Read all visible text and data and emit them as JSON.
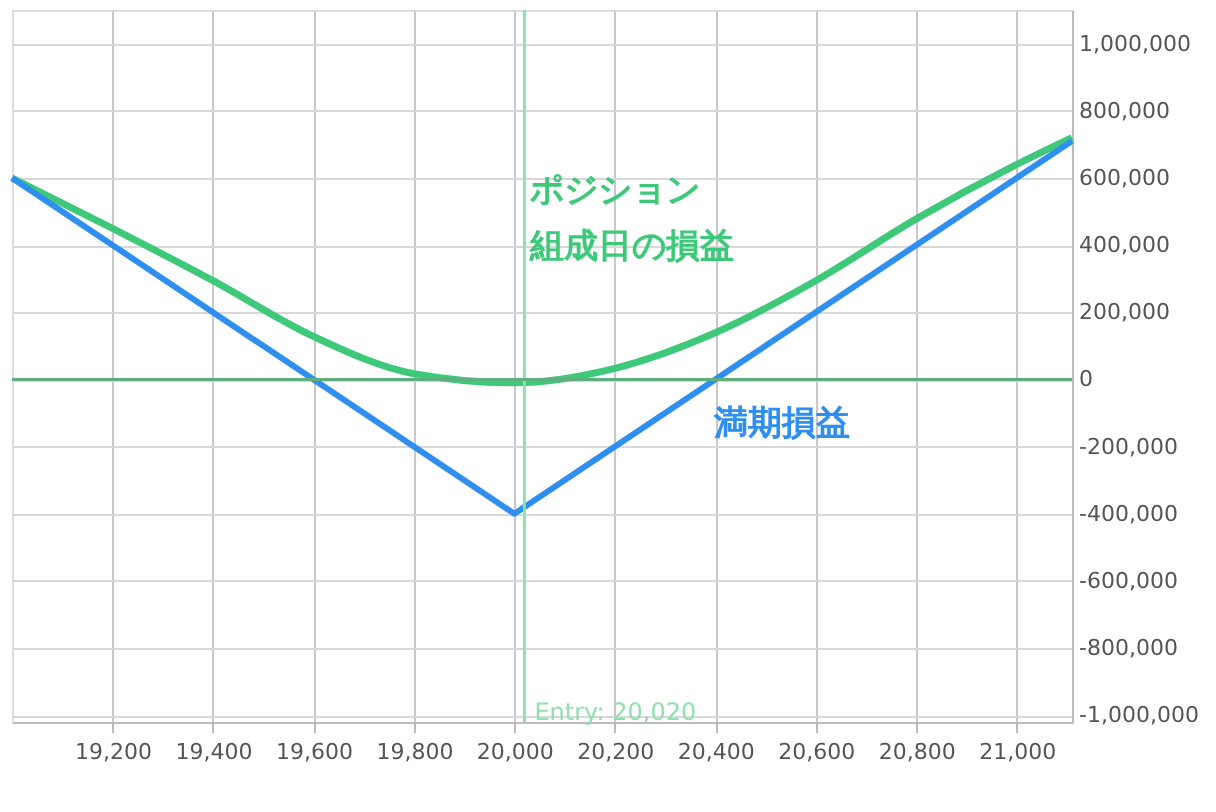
{
  "chart_data": {
    "type": "line",
    "xlim": [
      19000,
      21110
    ],
    "xticks": [
      {
        "value": 19200,
        "label": "19,200"
      },
      {
        "value": 19400,
        "label": "19,400"
      },
      {
        "value": 19600,
        "label": "19,600"
      },
      {
        "value": 19800,
        "label": "19,800"
      },
      {
        "value": 20000,
        "label": "20,000"
      },
      {
        "value": 20200,
        "label": "20,200"
      },
      {
        "value": 20400,
        "label": "20,400"
      },
      {
        "value": 20600,
        "label": "20,600"
      },
      {
        "value": 20800,
        "label": "20,800"
      },
      {
        "value": 21000,
        "label": "21,000"
      }
    ],
    "ylim": [
      -1020000,
      1100000
    ],
    "yticks": [
      {
        "value": -1000000,
        "label": "-1,000,000"
      },
      {
        "value": -800000,
        "label": "-800,000"
      },
      {
        "value": -600000,
        "label": "-600,000"
      },
      {
        "value": -400000,
        "label": "-400,000"
      },
      {
        "value": -200000,
        "label": "-200,000"
      },
      0,
      {
        "value": 200000,
        "label": "200,000"
      },
      {
        "value": 400000,
        "label": "400,000"
      },
      {
        "value": 600000,
        "label": "600,000"
      },
      {
        "value": 800000,
        "label": "800,000"
      },
      {
        "value": 1000000,
        "label": "1,000,000"
      }
    ],
    "grid": true,
    "marker": "none",
    "line_style": "solid",
    "series": [
      {
        "name": "ポジション組成日の損益",
        "color": "#3ec97a",
        "x": [
          19000,
          19200,
          19400,
          19600,
          19800,
          20000,
          20200,
          20400,
          20600,
          20800,
          21000,
          21110
        ],
        "values": [
          600000,
          450000,
          294000,
          128000,
          17000,
          -10000,
          33000,
          139000,
          294000,
          478000,
          640000,
          720000
        ]
      },
      {
        "name": "満期損益",
        "color": "#2f8ff0",
        "x": [
          19000,
          20000,
          21110
        ],
        "values": [
          600000,
          -400000,
          710000
        ]
      }
    ],
    "ref_lines": [
      {
        "axis": "x",
        "value": 20020,
        "label": "Entry: 20,020",
        "color": "#8fe0ae"
      },
      {
        "axis": "y",
        "value": 0,
        "label": null,
        "color": "#5fae7f"
      }
    ]
  }
}
